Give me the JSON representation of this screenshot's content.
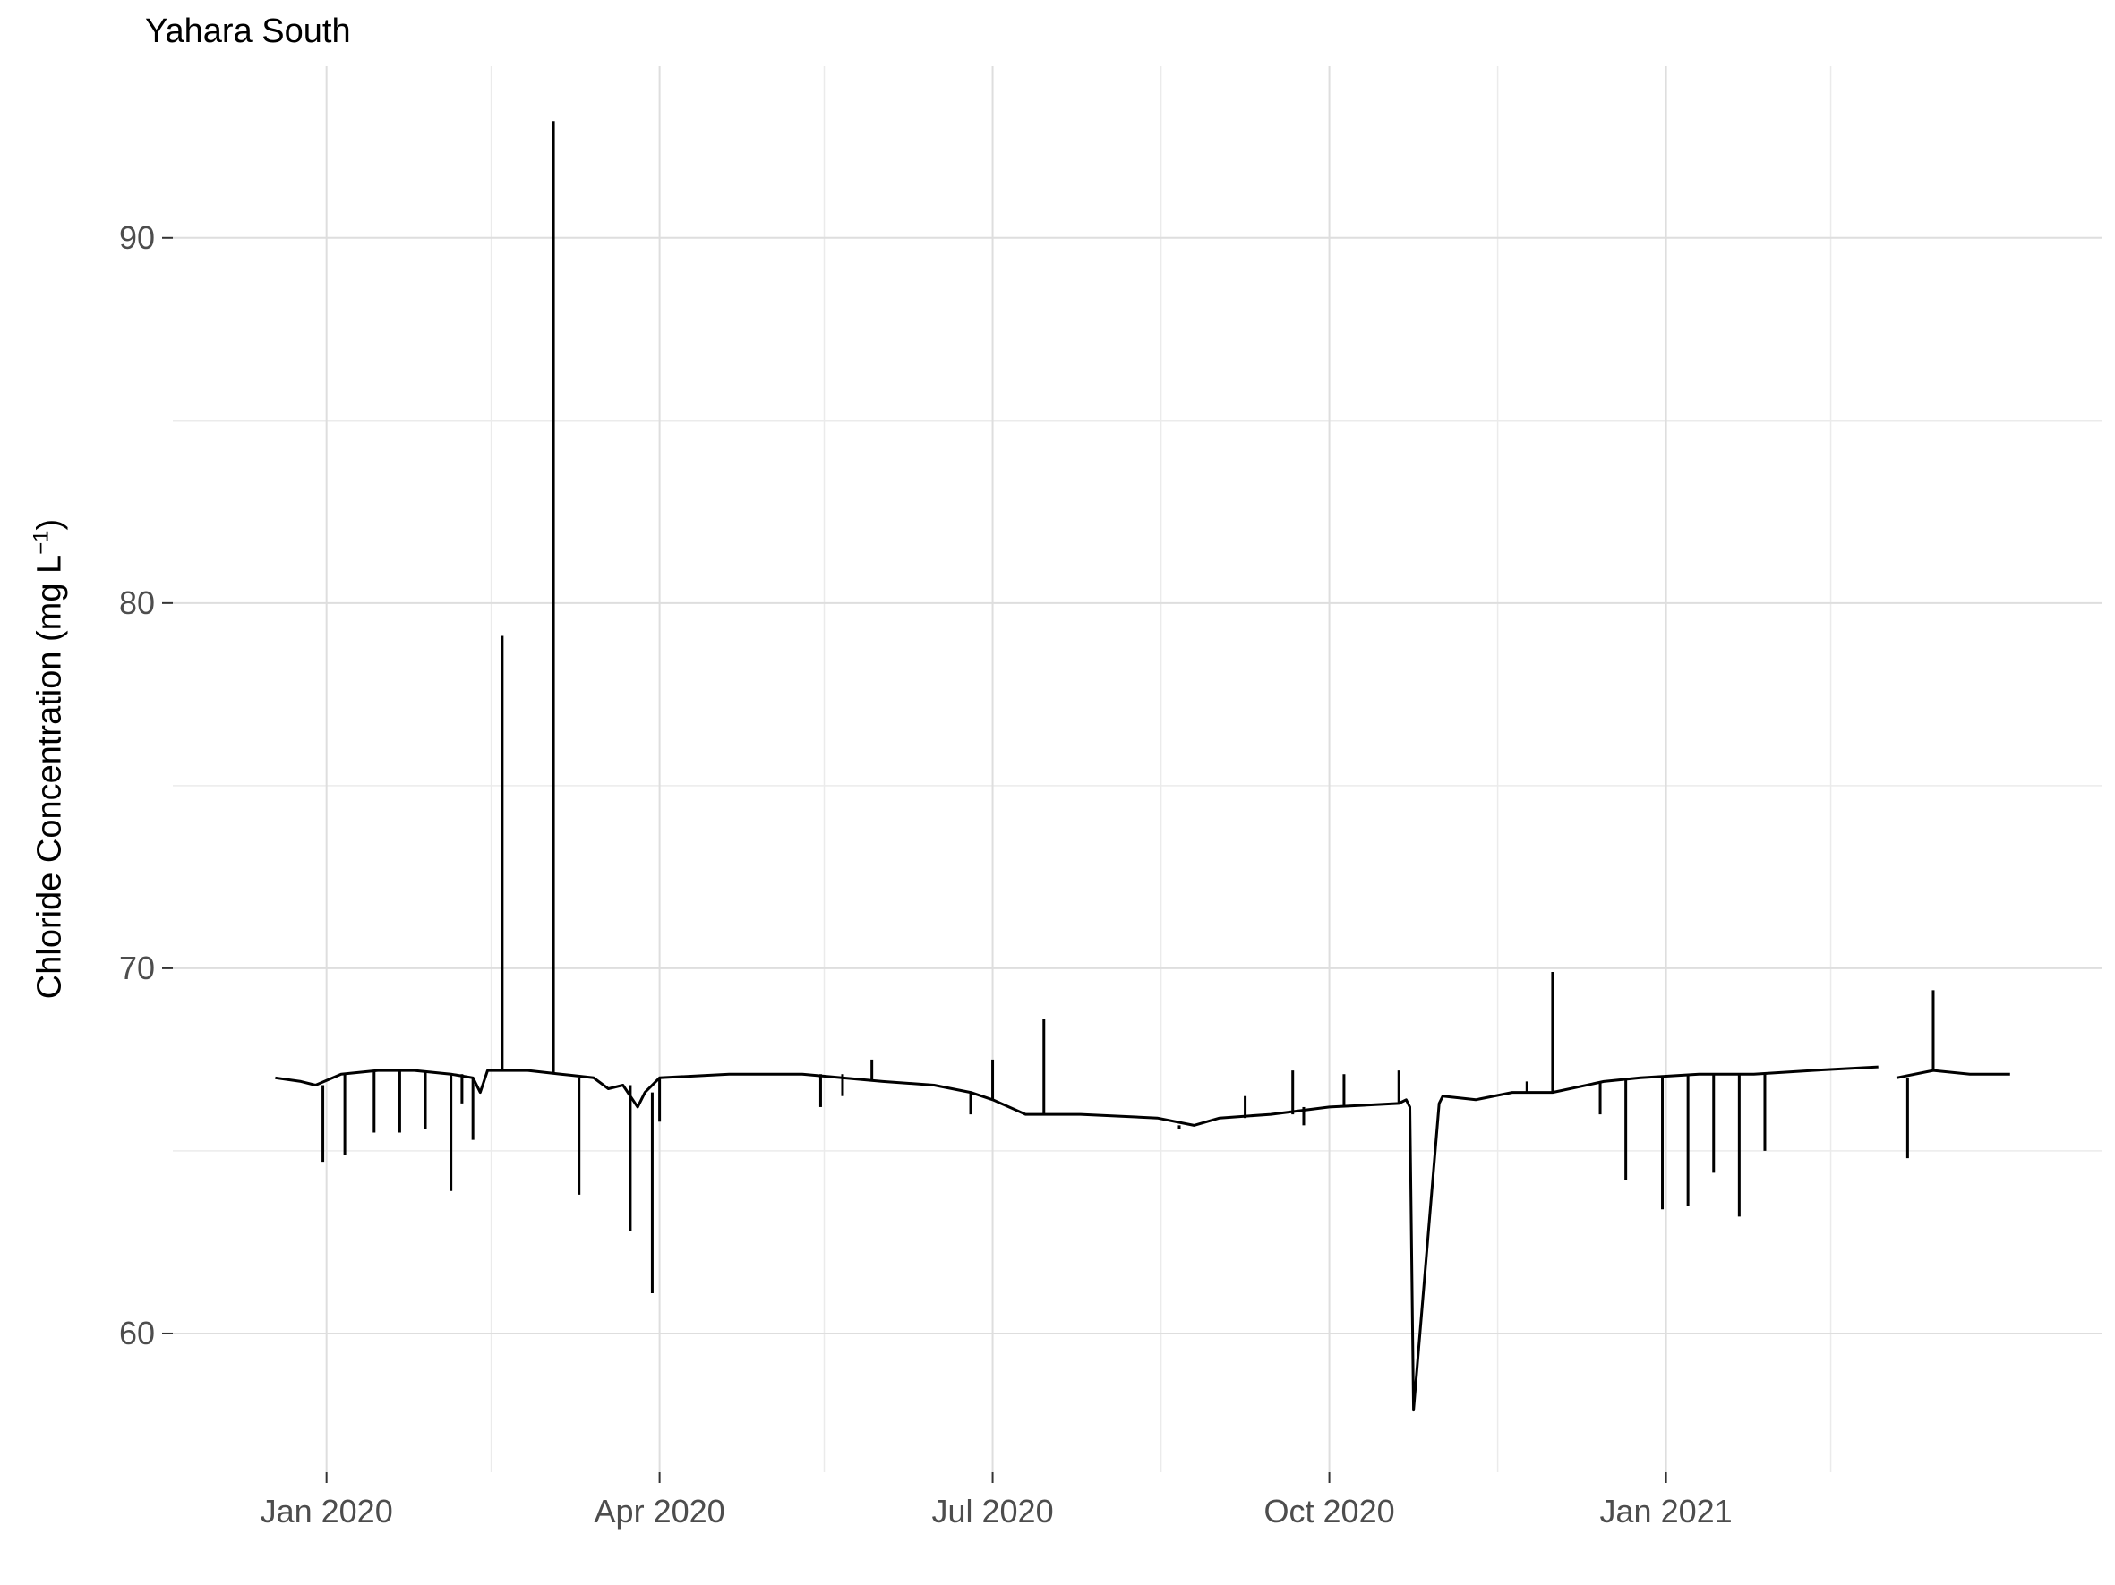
{
  "chart_data": {
    "type": "line",
    "title": "Yahara South",
    "ylabel": "Chloride Concentration (mg L",
    "ylabel_superscript": "−1",
    "ylabel_suffix": ")",
    "ylim": [
      56.2,
      94.7
    ],
    "y_ticks": [
      60,
      70,
      80,
      90
    ],
    "x_ticks": [
      "2020-01-01",
      "2020-04-01",
      "2020-07-01",
      "2020-10-01",
      "2021-01-01"
    ],
    "x_tick_labels": [
      "Jan 2020",
      "Apr 2020",
      "Jul 2020",
      "Oct 2020",
      "Jan 2021"
    ],
    "x_minor": [
      "2020-02-15",
      "2020-05-16",
      "2020-08-16",
      "2020-11-16",
      "2021-02-15"
    ],
    "xlim": [
      "2019-11-20",
      "2021-04-30"
    ],
    "grid": true,
    "line_color": "#000000",
    "series": [
      {
        "segments": [
          [
            [
              "2019-12-18",
              67.0
            ],
            [
              "2019-12-25",
              66.9
            ],
            [
              "2019-12-29",
              66.8
            ],
            [
              "2020-01-05",
              67.1
            ],
            [
              "2020-01-15",
              67.2
            ],
            [
              "2020-01-25",
              67.2
            ],
            [
              "2020-02-04",
              67.1
            ],
            [
              "2020-02-10",
              67.0
            ],
            [
              "2020-02-12",
              66.6
            ],
            [
              "2020-02-14",
              67.2
            ],
            [
              "2020-02-25",
              67.2
            ],
            [
              "2020-03-05",
              67.1
            ],
            [
              "2020-03-14",
              67.0
            ],
            [
              "2020-03-18",
              66.7
            ],
            [
              "2020-03-22",
              66.8
            ],
            [
              "2020-03-26",
              66.2
            ],
            [
              "2020-03-28",
              66.6
            ],
            [
              "2020-04-01",
              67.0
            ],
            [
              "2020-04-20",
              67.1
            ],
            [
              "2020-05-10",
              67.1
            ],
            [
              "2020-06-01",
              66.9
            ],
            [
              "2020-06-15",
              66.8
            ],
            [
              "2020-06-25",
              66.6
            ],
            [
              "2020-07-01",
              66.4
            ],
            [
              "2020-07-10",
              66.0
            ],
            [
              "2020-07-25",
              66.0
            ],
            [
              "2020-08-15",
              65.9
            ],
            [
              "2020-08-25",
              65.7
            ],
            [
              "2020-09-01",
              65.9
            ],
            [
              "2020-09-15",
              66.0
            ],
            [
              "2020-10-01",
              66.2
            ],
            [
              "2020-10-20",
              66.3
            ],
            [
              "2020-10-22",
              66.4
            ],
            [
              "2020-10-23",
              66.2
            ],
            [
              "2020-10-24",
              57.9
            ],
            [
              "2020-10-31",
              66.3
            ],
            [
              "2020-11-01",
              66.5
            ],
            [
              "2020-11-10",
              66.4
            ],
            [
              "2020-11-20",
              66.6
            ],
            [
              "2020-12-01",
              66.6
            ],
            [
              "2020-12-15",
              66.9
            ],
            [
              "2020-12-25",
              67.0
            ],
            [
              "2021-01-10",
              67.1
            ],
            [
              "2021-01-25",
              67.1
            ],
            [
              "2021-02-10",
              67.2
            ],
            [
              "2021-02-28",
              67.3
            ]
          ],
          [
            [
              "2021-03-05",
              67.0
            ],
            [
              "2021-03-15",
              67.2
            ],
            [
              "2021-03-25",
              67.1
            ],
            [
              "2021-04-05",
              67.1
            ]
          ]
        ],
        "spikes": [
          [
            "2019-12-31",
            64.7
          ],
          [
            "2020-01-06",
            64.9
          ],
          [
            "2020-01-14",
            65.5
          ],
          [
            "2020-01-21",
            65.5
          ],
          [
            "2020-01-28",
            65.6
          ],
          [
            "2020-02-04",
            63.9
          ],
          [
            "2020-02-07",
            66.3
          ],
          [
            "2020-02-10",
            65.3
          ],
          [
            "2020-02-18",
            79.1
          ],
          [
            "2020-03-03",
            93.2
          ],
          [
            "2020-03-10",
            63.8
          ],
          [
            "2020-03-24",
            62.8
          ],
          [
            "2020-03-30",
            61.1
          ],
          [
            "2020-04-01",
            65.8
          ],
          [
            "2020-05-15",
            66.2
          ],
          [
            "2020-05-21",
            66.5
          ],
          [
            "2020-05-29",
            67.5
          ],
          [
            "2020-06-25",
            66.0
          ],
          [
            "2020-07-01",
            67.5
          ],
          [
            "2020-07-15",
            68.6
          ],
          [
            "2020-08-21",
            65.6
          ],
          [
            "2020-09-08",
            66.5
          ],
          [
            "2020-09-21",
            67.2
          ],
          [
            "2020-09-24",
            65.7
          ],
          [
            "2020-10-05",
            67.1
          ],
          [
            "2020-10-20",
            67.2
          ],
          [
            "2020-11-24",
            66.9
          ],
          [
            "2020-12-01",
            69.9
          ],
          [
            "2020-12-14",
            66.0
          ],
          [
            "2020-12-21",
            64.2
          ],
          [
            "2020-12-31",
            63.4
          ],
          [
            "2021-01-07",
            63.5
          ],
          [
            "2021-01-14",
            64.4
          ],
          [
            "2021-01-21",
            63.2
          ],
          [
            "2021-01-28",
            65.0
          ],
          [
            "2021-03-08",
            64.8
          ],
          [
            "2021-03-15",
            69.4
          ]
        ]
      }
    ]
  }
}
